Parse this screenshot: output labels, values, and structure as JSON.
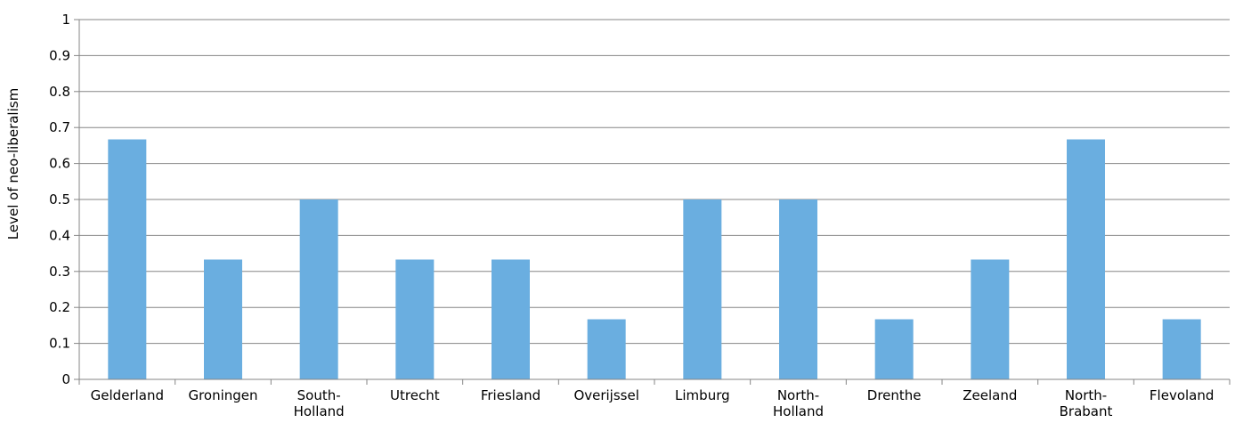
{
  "chart_data": {
    "type": "bar",
    "title": "",
    "xlabel": "",
    "ylabel": "Level of neo-liberalism",
    "ylim": [
      0,
      1
    ],
    "yticks": [
      "0",
      "0.1",
      "0.2",
      "0.3",
      "0.4",
      "0.5",
      "0.6",
      "0.7",
      "0.8",
      "0.9",
      "1"
    ],
    "grid": true,
    "legend": "none",
    "bar_color": "#6aaee0",
    "categories": [
      [
        "Gelderland"
      ],
      [
        "Groningen"
      ],
      [
        "South-",
        "Holland"
      ],
      [
        "Utrecht"
      ],
      [
        "Friesland"
      ],
      [
        "Overijssel"
      ],
      [
        "Limburg"
      ],
      [
        "North-",
        "Holland"
      ],
      [
        "Drenthe"
      ],
      [
        "Zeeland"
      ],
      [
        "North-",
        "Brabant"
      ],
      [
        "Flevoland"
      ]
    ],
    "values": [
      0.667,
      0.333,
      0.5,
      0.333,
      0.333,
      0.167,
      0.5,
      0.5,
      0.167,
      0.333,
      0.667,
      0.167
    ]
  }
}
